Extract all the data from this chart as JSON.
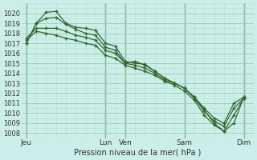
{
  "title": "Pression niveau de la mer( hPa )",
  "ylim": [
    1007.5,
    1021.0
  ],
  "yticks": [
    1008,
    1009,
    1010,
    1011,
    1012,
    1013,
    1014,
    1015,
    1016,
    1017,
    1018,
    1019,
    1020
  ],
  "bg_color": "#cceee8",
  "grid_major_color": "#99ccbb",
  "grid_minor_color": "#bbddcc",
  "line_color": "#336633",
  "vline_color": "#446644",
  "day_labels": [
    "Jeu",
    "Lun",
    "Ven",
    "Sam",
    "Dim"
  ],
  "day_positions": [
    0,
    8,
    10,
    16,
    22
  ],
  "xlim": [
    -0.5,
    23.0
  ],
  "vlines": [
    0,
    8,
    10,
    16,
    22
  ],
  "lines": [
    {
      "x": [
        0,
        1,
        2,
        3,
        4,
        5,
        6,
        7,
        8,
        9,
        10,
        11,
        12,
        13,
        14,
        15,
        16,
        17,
        18,
        19,
        20,
        21,
        22
      ],
      "y": [
        1017.0,
        1019.0,
        1020.1,
        1020.2,
        1019.0,
        1018.6,
        1018.5,
        1018.3,
        1017.0,
        1016.7,
        1015.2,
        1015.0,
        1014.9,
        1014.2,
        1013.5,
        1013.0,
        1012.5,
        1011.6,
        1010.3,
        1009.0,
        1008.2,
        1009.0,
        1011.6
      ]
    },
    {
      "x": [
        0,
        1,
        2,
        3,
        4,
        5,
        6,
        7,
        8,
        9,
        10,
        11,
        12,
        13,
        14,
        15,
        16,
        17,
        18,
        19,
        20,
        21,
        22
      ],
      "y": [
        1017.0,
        1019.0,
        1019.5,
        1019.6,
        1018.9,
        1018.4,
        1018.0,
        1017.8,
        1016.6,
        1016.3,
        1015.0,
        1015.2,
        1014.8,
        1014.2,
        1013.5,
        1013.0,
        1012.5,
        1011.6,
        1010.5,
        1009.5,
        1009.0,
        1011.0,
        1011.6
      ]
    },
    {
      "x": [
        0,
        1,
        2,
        3,
        4,
        5,
        6,
        7,
        8,
        9,
        10,
        11,
        12,
        13,
        14,
        15,
        16,
        17,
        18,
        19,
        20,
        21,
        22
      ],
      "y": [
        1017.5,
        1018.5,
        1018.5,
        1018.5,
        1018.2,
        1017.8,
        1017.6,
        1017.3,
        1016.3,
        1016.0,
        1015.0,
        1014.8,
        1014.5,
        1014.0,
        1013.3,
        1013.0,
        1012.5,
        1011.5,
        1010.2,
        1009.2,
        1008.7,
        1010.5,
        1011.5
      ]
    },
    {
      "x": [
        0,
        1,
        2,
        3,
        4,
        5,
        6,
        7,
        8,
        9,
        10,
        11,
        12,
        13,
        14,
        15,
        16,
        17,
        18,
        19,
        20,
        21,
        22
      ],
      "y": [
        1017.3,
        1018.2,
        1018.0,
        1017.8,
        1017.5,
        1017.3,
        1017.0,
        1016.8,
        1015.8,
        1015.5,
        1014.8,
        1014.5,
        1014.2,
        1013.8,
        1013.2,
        1012.8,
        1012.2,
        1011.3,
        1009.8,
        1008.8,
        1008.2,
        1009.8,
        1011.5
      ]
    }
  ]
}
